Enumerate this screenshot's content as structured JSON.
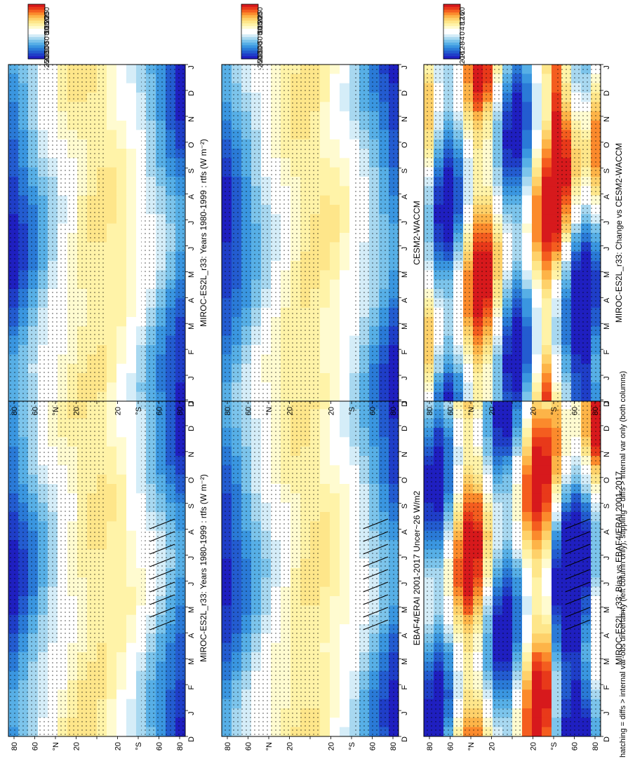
{
  "figure": {
    "footnote": "hatching = diffs > internal var-obs uncertainty (left column only); stippling = diffs > internal var only (both columns)"
  },
  "colorbars": {
    "absolute": {
      "labels": [
        "250",
        "200",
        "150",
        "100",
        "50",
        "0",
        "-50",
        "-100",
        "-150",
        "-200",
        "-250"
      ],
      "colors": [
        "#d7191c",
        "#e8391a",
        "#f45d1f",
        "#fb8a2c",
        "#fdb448",
        "#fed16a",
        "#fee68a",
        "#fff3a8",
        "#fffbd0",
        "#ffffff",
        "#ffffff",
        "#d5edf8",
        "#a8d8f0",
        "#7cc4eb",
        "#57afe6",
        "#3a96e0",
        "#2a7ad7",
        "#235cd0",
        "#1f3ec8",
        "#1f1fc0"
      ]
    },
    "difference": {
      "labels": [
        "20",
        "16",
        "12",
        "8",
        "4",
        "0",
        "-4",
        "-8",
        "-12",
        "-16",
        "-20"
      ],
      "colors": [
        "#d7191c",
        "#e8391a",
        "#f45d1f",
        "#fb8a2c",
        "#fdb448",
        "#fed16a",
        "#fee68a",
        "#fff3a8",
        "#fffbd0",
        "#ffffff",
        "#ffffff",
        "#d5edf8",
        "#a8d8f0",
        "#7cc4eb",
        "#57afe6",
        "#3a96e0",
        "#2a7ad7",
        "#235cd0",
        "#1f3ec8",
        "#1f1fc0"
      ]
    }
  },
  "chart_data": [
    {
      "type": "heatmap",
      "title": "MIROC-ES2L_r33: Years 1980-1999 : rtfs (W m⁻²)",
      "x": [
        "D",
        "J",
        "F",
        "M",
        "A",
        "M",
        "J",
        "J",
        "A",
        "S",
        "O",
        "N",
        "D",
        "J"
      ],
      "y_ticks": [
        "80",
        "60",
        "40",
        "20",
        "0",
        "20",
        "40",
        "60",
        "80"
      ],
      "y_tick_labels": [
        "80",
        "60",
        "°N",
        "20",
        "",
        "20",
        "°S",
        "60",
        "80"
      ],
      "colorbar": "absolute",
      "hatching": true,
      "stippling": true
    },
    {
      "type": "heatmap",
      "title": "MIROC-ES2L_r33: Years 1980-1999 : rtfs (W m⁻²)",
      "x": [
        "D",
        "J",
        "F",
        "M",
        "A",
        "M",
        "J",
        "J",
        "A",
        "S",
        "O",
        "N",
        "D",
        "J"
      ],
      "y_ticks": [
        "80",
        "60",
        "40",
        "20",
        "0",
        "20",
        "40",
        "60",
        "80"
      ],
      "y_tick_labels": [
        "80",
        "60",
        "°N",
        "20",
        "",
        "20",
        "°S",
        "60",
        "80"
      ],
      "colorbar": "absolute",
      "hatching": false,
      "stippling": true
    },
    {
      "type": "heatmap",
      "title": "EBAF4/ERAI 2001-2017 Uncer~26 W/m2",
      "x": [
        "D",
        "J",
        "F",
        "M",
        "A",
        "M",
        "J",
        "J",
        "A",
        "S",
        "O",
        "N",
        "D",
        "J"
      ],
      "y_ticks": [
        "80",
        "60",
        "40",
        "20",
        "0",
        "20",
        "40",
        "60",
        "80"
      ],
      "y_tick_labels": [
        "80",
        "60",
        "°N",
        "20",
        "",
        "20",
        "°S",
        "60",
        "80"
      ],
      "colorbar": "absolute",
      "hatching": true,
      "stippling": true
    },
    {
      "type": "heatmap",
      "title": "CESM2-WACCM",
      "x": [
        "D",
        "J",
        "F",
        "M",
        "A",
        "M",
        "J",
        "J",
        "A",
        "S",
        "O",
        "N",
        "D",
        "J"
      ],
      "y_ticks": [
        "80",
        "60",
        "40",
        "20",
        "0",
        "20",
        "40",
        "60",
        "80"
      ],
      "y_tick_labels": [
        "80",
        "60",
        "°N",
        "20",
        "",
        "20",
        "°S",
        "60",
        "80"
      ],
      "colorbar": "absolute",
      "hatching": false,
      "stippling": true
    },
    {
      "type": "heatmap",
      "title": "MIROC-ES2L_r33: Bias vs EBAF4/ERAI 2001-2017",
      "x": [
        "D",
        "J",
        "F",
        "M",
        "A",
        "M",
        "J",
        "J",
        "A",
        "S",
        "O",
        "N",
        "D",
        "J"
      ],
      "y_ticks": [
        "80",
        "60",
        "40",
        "20",
        "0",
        "20",
        "40",
        "60",
        "80"
      ],
      "y_tick_labels": [
        "80",
        "60",
        "°N",
        "20",
        "",
        "20",
        "°S",
        "60",
        "80"
      ],
      "colorbar": "difference",
      "hatching": true,
      "stippling": true
    },
    {
      "type": "heatmap",
      "title": "MIROC-ES2L_r33: Change vs CESM2-WACCM",
      "x": [
        "D",
        "J",
        "F",
        "M",
        "A",
        "M",
        "J",
        "J",
        "A",
        "S",
        "O",
        "N",
        "D",
        "J"
      ],
      "y_ticks": [
        "80",
        "60",
        "40",
        "20",
        "0",
        "20",
        "40",
        "60",
        "80"
      ],
      "y_tick_labels": [
        "80",
        "60",
        "°N",
        "20",
        "",
        "20",
        "°S",
        "60",
        "80"
      ],
      "colorbar": "difference",
      "hatching": false,
      "stippling": true
    }
  ]
}
